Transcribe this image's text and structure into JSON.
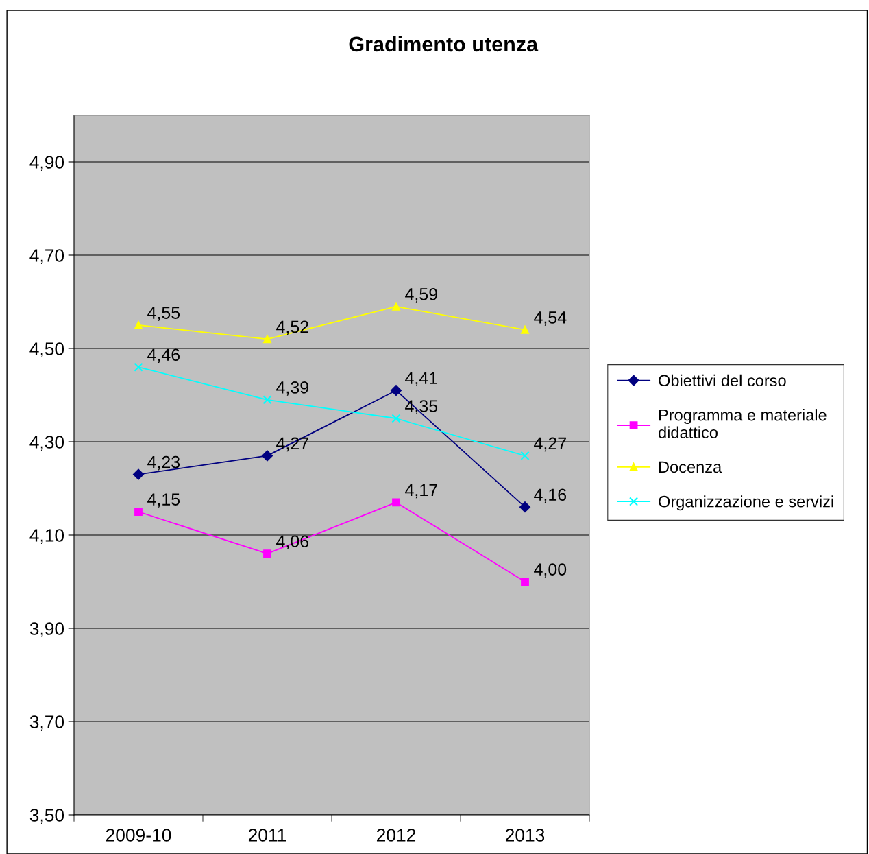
{
  "chart_data": {
    "type": "line",
    "title": "Gradimento utenza",
    "categories": [
      "2009-10",
      "2011",
      "2012",
      "2013"
    ],
    "series": [
      {
        "name": "Obiettivi del corso",
        "color": "#000080",
        "marker": "diamond",
        "values": [
          4.23,
          4.27,
          4.41,
          4.16
        ],
        "value_labels": [
          "4,23",
          "4,27",
          "4,41",
          "4,16"
        ]
      },
      {
        "name": "Programma e materiale\ndidattico",
        "color": "#ff00ff",
        "marker": "square",
        "values": [
          4.15,
          4.06,
          4.17,
          4.0
        ],
        "value_labels": [
          "4,15",
          "4,06",
          "4,17",
          "4,00"
        ]
      },
      {
        "name": "Docenza",
        "color": "#ffff00",
        "marker": "triangle",
        "values": [
          4.55,
          4.52,
          4.59,
          4.54
        ],
        "value_labels": [
          "4,55",
          "4,52",
          "4,59",
          "4,54"
        ]
      },
      {
        "name": "Organizzazione e servizi",
        "color": "#00ffff",
        "marker": "cross",
        "values": [
          4.46,
          4.39,
          4.35,
          4.27
        ],
        "value_labels": [
          "4,46",
          "4,39",
          "4,35",
          "4,27"
        ]
      }
    ],
    "ylim": [
      3.5,
      5.0
    ],
    "yticks": [
      {
        "value": 3.5,
        "label": "3,50"
      },
      {
        "value": 3.7,
        "label": "3,70"
      },
      {
        "value": 3.9,
        "label": "3,90"
      },
      {
        "value": 4.1,
        "label": "4,10"
      },
      {
        "value": 4.3,
        "label": "4,30"
      },
      {
        "value": 4.5,
        "label": "4,50"
      },
      {
        "value": 4.7,
        "label": "4,70"
      },
      {
        "value": 4.9,
        "label": "4,90"
      }
    ],
    "grid": "y",
    "legend": "right",
    "line_style": "solid"
  }
}
